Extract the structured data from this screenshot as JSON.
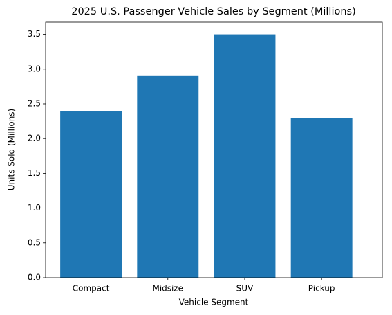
{
  "chart_data": {
    "type": "bar",
    "title": "2025 U.S. Passenger Vehicle Sales by Segment (Millions)",
    "x_label": "Vehicle Segment",
    "y_label": "Units Sold (Millions)",
    "categories": [
      "Compact",
      "Midsize",
      "SUV",
      "Pickup"
    ],
    "values": [
      2.4,
      2.9,
      3.5,
      2.3
    ],
    "color": "#1f77b4",
    "ylim": [
      0,
      3.675
    ],
    "yticks": [
      {
        "value": 0,
        "label": "0.0"
      },
      0.5,
      {
        "value": 1,
        "label": "1.0"
      },
      1.5,
      {
        "value": 2,
        "label": "2.0"
      },
      2.5,
      {
        "value": 3,
        "label": "3.0"
      },
      3.5
    ],
    "grid": false
  }
}
